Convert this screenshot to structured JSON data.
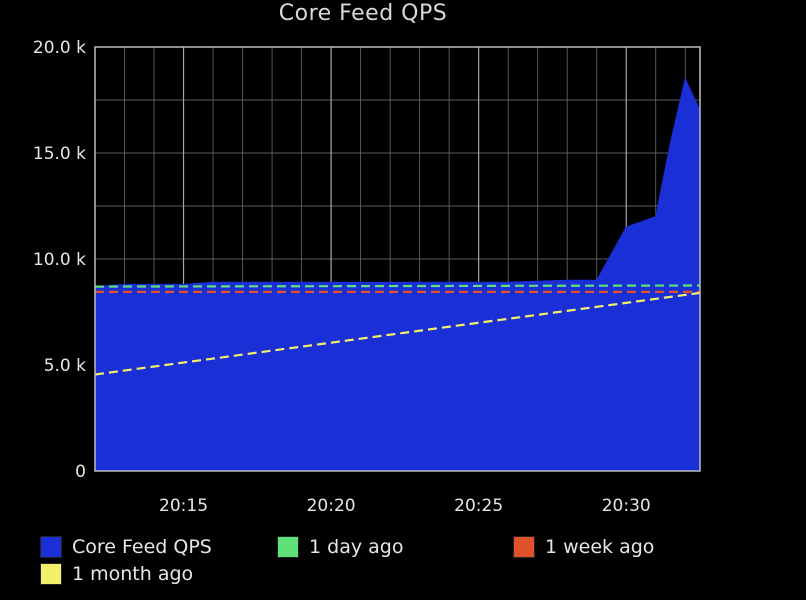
{
  "chart_data": {
    "type": "area",
    "title": "Core Feed QPS",
    "xlabel": "",
    "ylabel": "",
    "x_ticks": [
      "20:15",
      "20:20",
      "20:25",
      "20:30"
    ],
    "x_range": [
      "20:12",
      "20:32"
    ],
    "y_ticks": [
      "0",
      "5.0 k",
      "10.0 k",
      "15.0 k",
      "20.0 k"
    ],
    "ylim": [
      0,
      20000
    ],
    "grid": true,
    "legend_position": "bottom",
    "series": [
      {
        "name": "Core Feed QPS",
        "style": "filled-area",
        "color": "#1a2fd6",
        "x": [
          "20:12",
          "20:13",
          "20:14",
          "20:15",
          "20:16",
          "20:17",
          "20:18",
          "20:19",
          "20:20",
          "20:21",
          "20:22",
          "20:23",
          "20:24",
          "20:25",
          "20:26",
          "20:27",
          "20:28",
          "20:29",
          "20:30",
          "20:31",
          "20:31:30",
          "20:32",
          "20:32:30"
        ],
        "values": [
          8700,
          8800,
          8800,
          8800,
          8900,
          8900,
          8900,
          8900,
          8900,
          8900,
          8900,
          8900,
          8900,
          8900,
          8900,
          8950,
          9000,
          9000,
          11500,
          12000,
          15500,
          18500,
          17000
        ]
      },
      {
        "name": "1 day ago",
        "style": "dashed-line",
        "color": "#5fe07a",
        "x": [
          "20:12",
          "20:32:30"
        ],
        "values": [
          8700,
          8750
        ]
      },
      {
        "name": "1 week ago",
        "style": "dashed-line",
        "color": "#e0522a",
        "x": [
          "20:12",
          "20:32:30"
        ],
        "values": [
          8450,
          8450
        ]
      },
      {
        "name": "1 month ago",
        "style": "dashed-line",
        "color": "#f2f06a",
        "x": [
          "20:12",
          "20:32:30"
        ],
        "values": [
          4550,
          8400
        ]
      }
    ]
  },
  "legend": {
    "items": [
      {
        "label": "Core Feed QPS",
        "color": "#1a2fd6"
      },
      {
        "label": "1 day ago",
        "color": "#5fe07a"
      },
      {
        "label": "1 week ago",
        "color": "#e0522a"
      },
      {
        "label": "1 month ago",
        "color": "#f2f06a"
      }
    ]
  }
}
